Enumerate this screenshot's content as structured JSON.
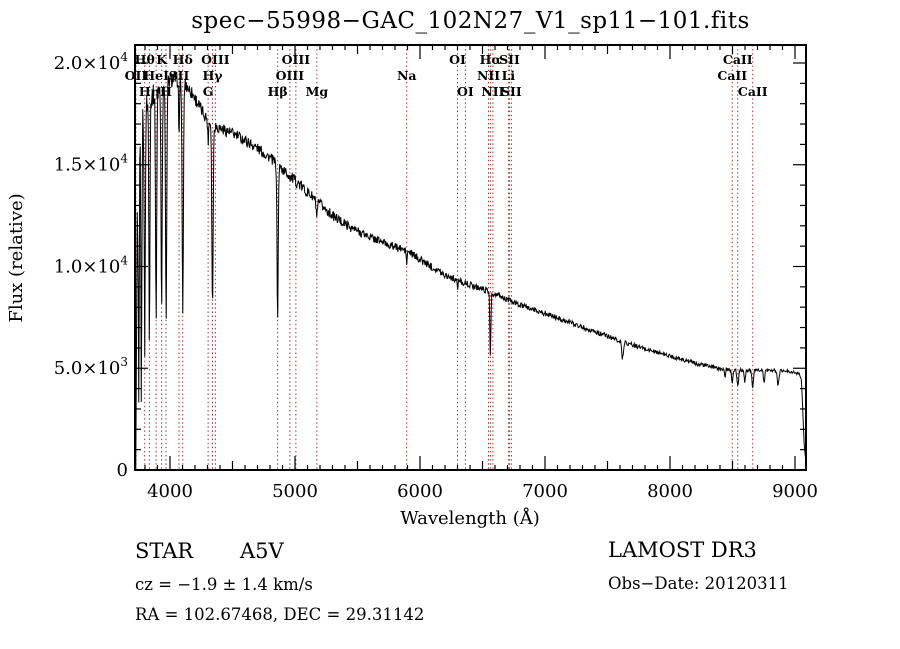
{
  "title": "spec−55998−GAC_102N27_V1_sp11−101.fits",
  "annotations": {
    "object_class": "STAR",
    "subclass": "A5V",
    "cz_line": "cz = −1.9 ± 1.4 km/s",
    "radec_line": "RA = 102.67468, DEC =  29.31142",
    "survey": "LAMOST DR3",
    "obs_date": "Obs−Date: 20120311"
  },
  "chart_data": {
    "type": "line",
    "title": "spec−55998−GAC_102N27_V1_sp11−101.fits",
    "xlabel": "Wavelength (Å)",
    "ylabel": "Flux (relative)",
    "xlim": [
      3720,
      9088
    ],
    "ylim": [
      0,
      20884
    ],
    "grid": false,
    "legend": "none",
    "line_color": "#000000",
    "marker_color": "#a83434",
    "xticks": [
      4000,
      5000,
      6000,
      7000,
      8000,
      9000
    ],
    "yticks": [
      {
        "value": 0,
        "mantissa": "0",
        "exp": ""
      },
      {
        "value": 5000,
        "mantissa": "5.0×10",
        "exp": "3"
      },
      {
        "value": 10000,
        "mantissa": "1.0×10",
        "exp": "4"
      },
      {
        "value": 15000,
        "mantissa": "1.5×10",
        "exp": "4"
      },
      {
        "value": 20000,
        "mantissa": "2.0×10",
        "exp": "4"
      }
    ],
    "line_markers": [
      {
        "wavelength": 3727,
        "label": "OII",
        "row": 2
      },
      {
        "wavelength": 3798,
        "label": "Hθ",
        "row": 1
      },
      {
        "wavelength": 3835,
        "label": "Hη",
        "row": 3
      },
      {
        "wavelength": 3889,
        "label": "HeI",
        "row": 2
      },
      {
        "wavelength": 3933,
        "label": "K",
        "row": 1
      },
      {
        "wavelength": 3968,
        "label": "H",
        "row": 3
      },
      {
        "wavelength": 4072,
        "label": "SII",
        "row": 2
      },
      {
        "wavelength": 4102,
        "label": "Hδ",
        "row": 1
      },
      {
        "wavelength": 4305,
        "label": "G",
        "row": 3
      },
      {
        "wavelength": 4340,
        "label": "Hγ",
        "row": 2
      },
      {
        "wavelength": 4363,
        "label": "OIII",
        "row": 1
      },
      {
        "wavelength": 4861,
        "label": "Hβ",
        "row": 3
      },
      {
        "wavelength": 4959,
        "label": "OIII",
        "row": 2
      },
      {
        "wavelength": 5007,
        "label": "OIII",
        "row": 1
      },
      {
        "wavelength": 5175,
        "label": "Mg",
        "row": 3
      },
      {
        "wavelength": 5894,
        "label": "Na",
        "row": 2
      },
      {
        "wavelength": 6300,
        "label": "OI",
        "row": 1
      },
      {
        "wavelength": 6363,
        "label": "OI",
        "row": 3
      },
      {
        "wavelength": 6548,
        "label": "NII",
        "row": 2
      },
      {
        "wavelength": 6563,
        "label": "Hα",
        "row": 1
      },
      {
        "wavelength": 6583,
        "label": "NII",
        "row": 3
      },
      {
        "wavelength": 6707,
        "label": "Li",
        "row": 2
      },
      {
        "wavelength": 6716,
        "label": "SII",
        "row": 1
      },
      {
        "wavelength": 6731,
        "label": "SII",
        "row": 3
      },
      {
        "wavelength": 8498,
        "label": "CaII",
        "row": 2
      },
      {
        "wavelength": 8542,
        "label": "CaII",
        "row": 1
      },
      {
        "wavelength": 8662,
        "label": "CaII",
        "row": 3
      }
    ],
    "spectrum": {
      "step": 4,
      "continuum": [
        [
          3722,
          600,
          500
        ],
        [
          3728,
          5000,
          3500
        ],
        [
          3736,
          10500,
          3500
        ],
        [
          3748,
          14000,
          2200
        ],
        [
          3762,
          16200,
          1200
        ],
        [
          3780,
          17400,
          800
        ],
        [
          3810,
          17900,
          650
        ],
        [
          3850,
          18300,
          550
        ],
        [
          3900,
          18700,
          480
        ],
        [
          3960,
          19000,
          420
        ],
        [
          4030,
          19250,
          380
        ],
        [
          4110,
          19050,
          360
        ],
        [
          4180,
          18500,
          340
        ],
        [
          4250,
          17700,
          320
        ],
        [
          4310,
          17150,
          300
        ],
        [
          4380,
          16850,
          300
        ],
        [
          4460,
          16650,
          290
        ],
        [
          4560,
          16350,
          280
        ],
        [
          4680,
          15900,
          270
        ],
        [
          4800,
          15350,
          260
        ],
        [
          4920,
          14650,
          280
        ],
        [
          5040,
          14000,
          280
        ],
        [
          5160,
          13300,
          260
        ],
        [
          5300,
          12500,
          240
        ],
        [
          5450,
          11900,
          220
        ],
        [
          5600,
          11450,
          210
        ],
        [
          5760,
          11050,
          200
        ],
        [
          5900,
          10750,
          190
        ],
        [
          6050,
          10150,
          180
        ],
        [
          6200,
          9600,
          170
        ],
        [
          6350,
          9200,
          160
        ],
        [
          6500,
          8900,
          150
        ],
        [
          6650,
          8500,
          150
        ],
        [
          6800,
          8100,
          140
        ],
        [
          7000,
          7700,
          130
        ],
        [
          7200,
          7250,
          125
        ],
        [
          7400,
          6800,
          120
        ],
        [
          7600,
          6350,
          115
        ],
        [
          7800,
          5950,
          110
        ],
        [
          8000,
          5600,
          105
        ],
        [
          8200,
          5250,
          100
        ],
        [
          8380,
          5000,
          95
        ],
        [
          8500,
          4900,
          90
        ],
        [
          8650,
          4900,
          85
        ],
        [
          8800,
          4900,
          85
        ],
        [
          8950,
          4850,
          80
        ],
        [
          9030,
          4750,
          80
        ],
        [
          9052,
          4400,
          80
        ],
        [
          9062,
          3000,
          80
        ],
        [
          9072,
          1400,
          60
        ],
        [
          9082,
          700,
          40
        ],
        [
          9088,
          500,
          30
        ]
      ],
      "absorption_dips": [
        [
          3727,
          300,
          9
        ],
        [
          3750,
          1600,
          9
        ],
        [
          3771,
          3500,
          9
        ],
        [
          3798,
          6000,
          10
        ],
        [
          3835,
          6600,
          10
        ],
        [
          3889,
          7400,
          11
        ],
        [
          3933,
          8100,
          11
        ],
        [
          3969,
          7500,
          12
        ],
        [
          4072,
          15800,
          7
        ],
        [
          4102,
          7600,
          12
        ],
        [
          4305,
          16200,
          9
        ],
        [
          4340,
          7900,
          12
        ],
        [
          4861,
          7400,
          11
        ],
        [
          5175,
          12450,
          14
        ],
        [
          5894,
          10100,
          8
        ],
        [
          6300,
          8800,
          7
        ],
        [
          6563,
          5650,
          10
        ],
        [
          7620,
          5500,
          16
        ],
        [
          8440,
          4600,
          10
        ],
        [
          8498,
          4350,
          13
        ],
        [
          8542,
          4100,
          14
        ],
        [
          8598,
          4300,
          12
        ],
        [
          8662,
          4050,
          14
        ],
        [
          8752,
          4300,
          13
        ],
        [
          8865,
          4150,
          16
        ]
      ]
    }
  }
}
